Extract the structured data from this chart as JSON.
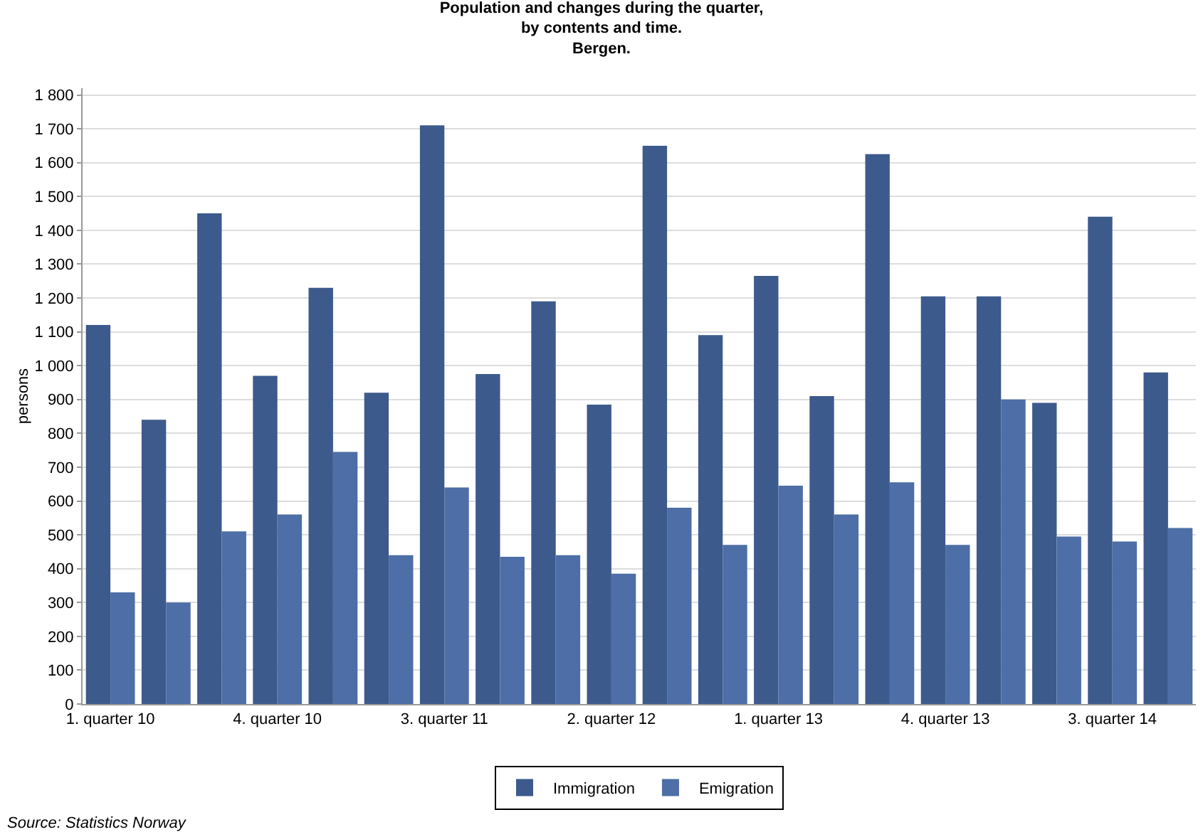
{
  "chart_data": {
    "type": "bar",
    "title": "Population and changes during the quarter,\nby contents and time.\nBergen.",
    "ylabel": "persons",
    "categories": [
      "1. quarter 10",
      null,
      null,
      "4. quarter 10",
      null,
      null,
      "3. quarter 11",
      null,
      null,
      "2. quarter 12",
      null,
      null,
      "1. quarter 13",
      null,
      null,
      "4. quarter 13",
      null,
      null,
      "3. quarter 14",
      null
    ],
    "series": [
      {
        "name": "Immigration",
        "color": "#3d5a8c",
        "values": [
          1120,
          840,
          1450,
          970,
          1230,
          920,
          1710,
          975,
          1190,
          885,
          1650,
          1090,
          1265,
          910,
          1625,
          1205,
          1205,
          890,
          1440,
          980
        ]
      },
      {
        "name": "Emigration",
        "color": "#4d6ea6",
        "values": [
          330,
          300,
          510,
          560,
          745,
          440,
          640,
          435,
          440,
          385,
          580,
          470,
          645,
          560,
          655,
          470,
          900,
          495,
          480,
          520
        ]
      }
    ],
    "ylim": [
      0,
      1820
    ],
    "yticks": [
      0,
      100,
      200,
      300,
      400,
      500,
      600,
      700,
      800,
      900,
      {
        "value": 1000,
        "label": "1 000"
      },
      {
        "value": 1100,
        "label": "1 100"
      },
      {
        "value": 1200,
        "label": "1 200"
      },
      {
        "value": 1300,
        "label": "1 300"
      },
      {
        "value": 1400,
        "label": "1 400"
      },
      {
        "value": 1500,
        "label": "1 500"
      },
      {
        "value": 1600,
        "label": "1 600"
      },
      {
        "value": 1700,
        "label": "1 700"
      },
      {
        "value": 1800,
        "label": "1 800"
      }
    ],
    "grid": "y",
    "legend": "bottom",
    "annotations": [
      "Source: Statistics Norway"
    ]
  }
}
